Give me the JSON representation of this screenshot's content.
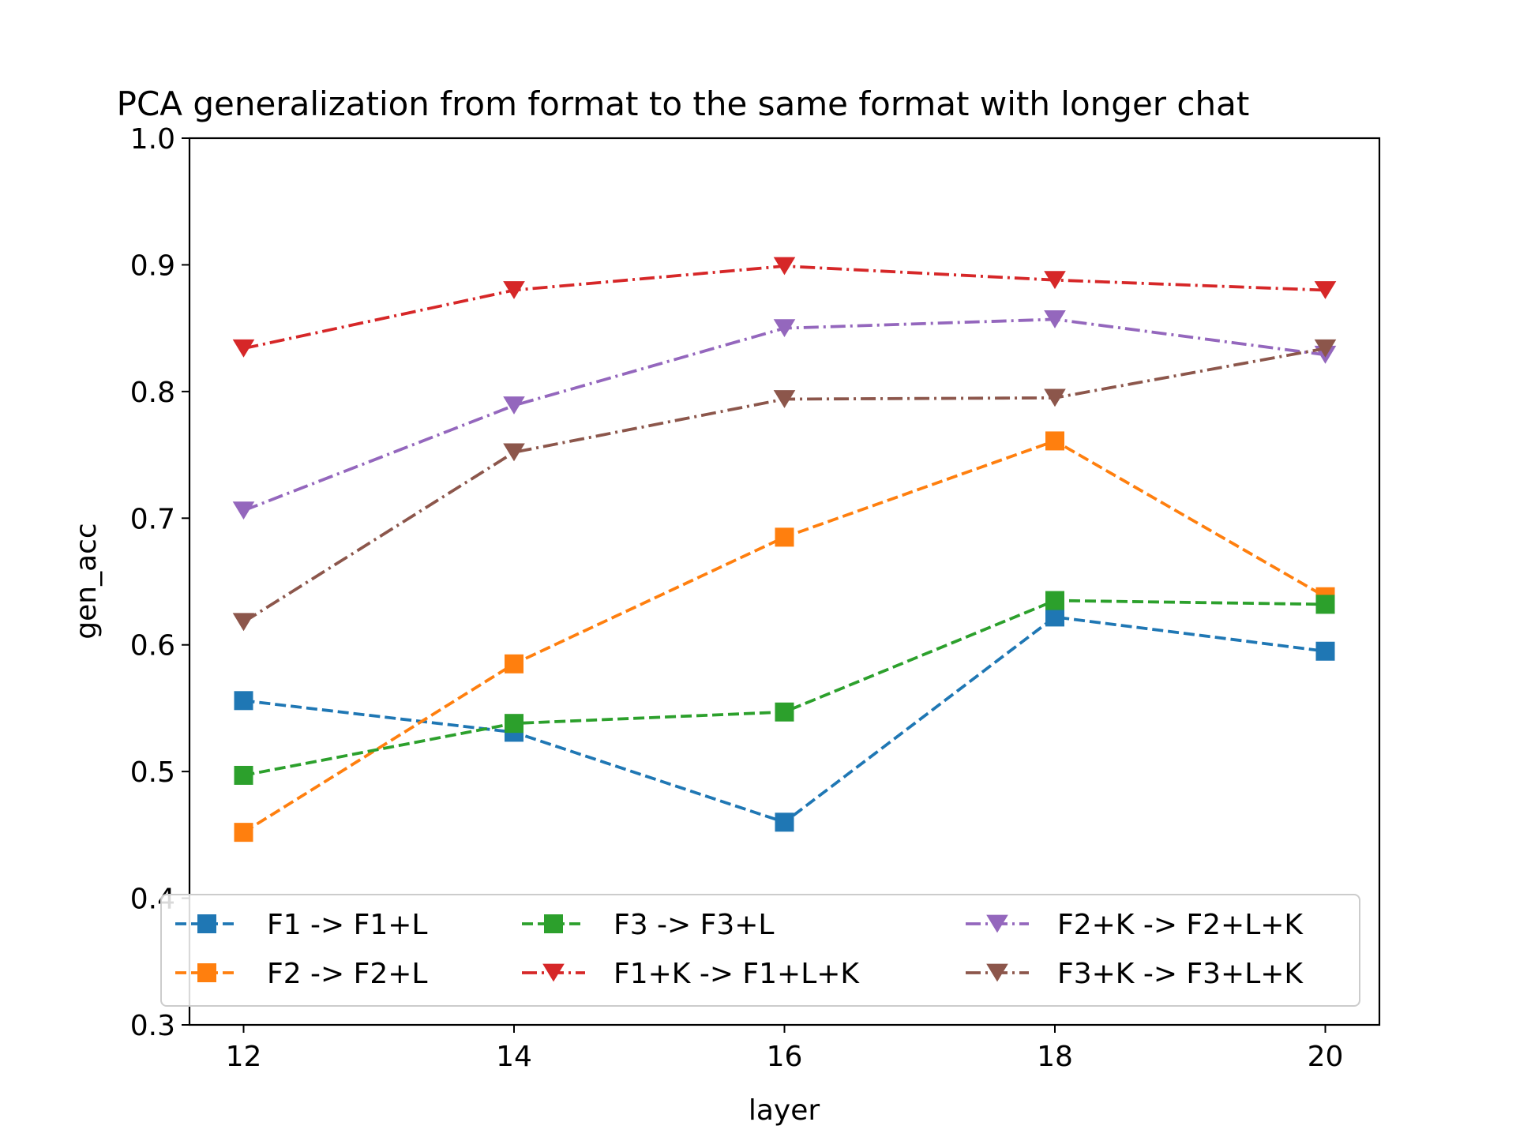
{
  "chart_data": {
    "type": "line",
    "title": "PCA generalization from format to the same format with longer chat",
    "xlabel": "layer",
    "ylabel": "gen_acc",
    "x": [
      12,
      14,
      16,
      18,
      20
    ],
    "xticks": [
      "12",
      "14",
      "16",
      "18",
      "20"
    ],
    "xlim": [
      11.6,
      20.4
    ],
    "ylim": [
      0.3,
      1.0
    ],
    "yticks": [
      "0.3",
      "0.4",
      "0.5",
      "0.6",
      "0.7",
      "0.8",
      "0.9",
      "1.0"
    ],
    "grid": false,
    "legend_position": "lower center",
    "series": [
      {
        "name": "F1 -> F1+L",
        "values": [
          0.556,
          0.531,
          0.46,
          0.622,
          0.595
        ],
        "color": "#1f77b4",
        "marker": "square",
        "linestyle": "dashed"
      },
      {
        "name": "F2 -> F2+L",
        "values": [
          0.452,
          0.585,
          0.685,
          0.761,
          0.638
        ],
        "color": "#ff7f0e",
        "marker": "square",
        "linestyle": "dashed"
      },
      {
        "name": "F3 -> F3+L",
        "values": [
          0.497,
          0.538,
          0.547,
          0.635,
          0.632
        ],
        "color": "#2ca02c",
        "marker": "square",
        "linestyle": "dashed"
      },
      {
        "name": "F1+K -> F1+L+K",
        "values": [
          0.834,
          0.88,
          0.899,
          0.888,
          0.88
        ],
        "color": "#d62728",
        "marker": "triangle-down",
        "linestyle": "dashdot"
      },
      {
        "name": "F2+K -> F2+L+K",
        "values": [
          0.706,
          0.789,
          0.85,
          0.857,
          0.829
        ],
        "color": "#9467bd",
        "marker": "triangle-down",
        "linestyle": "dashdot"
      },
      {
        "name": "F3+K -> F3+L+K",
        "values": [
          0.618,
          0.752,
          0.794,
          0.795,
          0.834
        ],
        "color": "#8c564b",
        "marker": "triangle-down",
        "linestyle": "dashdot"
      }
    ]
  }
}
